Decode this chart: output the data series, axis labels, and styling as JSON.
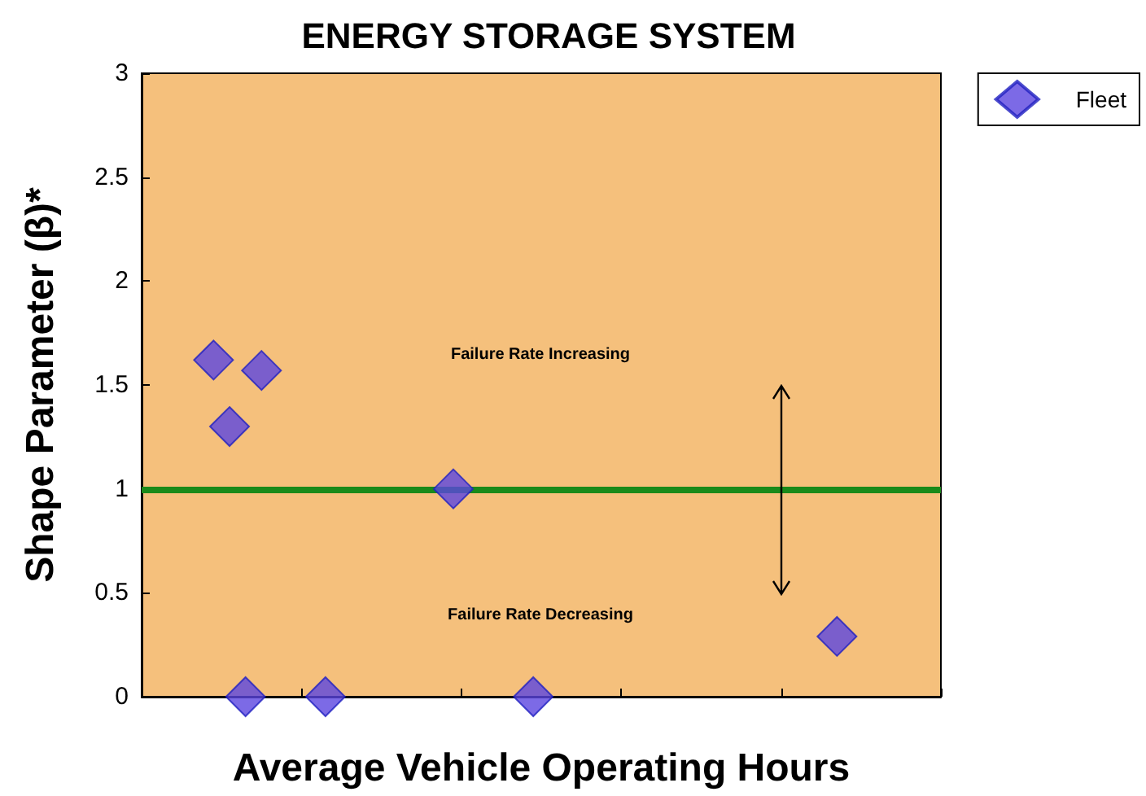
{
  "chart_data": {
    "type": "scatter",
    "title": "ENERGY STORAGE SYSTEM",
    "xlabel": "Average Vehicle Operating Hours",
    "ylabel": "Shape Parameter (β)*",
    "categories": [
      null,
      null,
      null,
      null,
      null,
      null,
      null,
      null,
      null,
      null,
      null,
      null,
      null,
      null,
      null,
      null,
      null,
      null,
      null,
      null,
      null,
      null,
      null,
      null,
      null,
      null,
      null,
      null,
      null,
      null,
      null,
      null,
      null,
      null,
      null,
      null,
      null,
      null,
      null,
      null,
      null,
      null,
      null,
      null,
      null,
      null,
      null,
      null,
      null,
      null
    ],
    "series": [
      {
        "name": "Fleet",
        "color": "#5b45e0",
        "values": [
          null,
          null,
          null,
          null,
          1.62,
          1.3,
          0,
          1.57,
          null,
          null,
          null,
          0,
          null,
          null,
          null,
          null,
          null,
          null,
          null,
          1.0,
          null,
          null,
          null,
          null,
          0,
          null,
          null,
          null,
          null,
          null,
          null,
          null,
          null,
          null,
          null,
          null,
          null,
          null,
          null,
          null,
          null,
          null,
          null,
          0.29,
          null,
          null,
          null,
          null,
          null,
          null
        ]
      }
    ],
    "ylim": [
      0,
      3
    ],
    "yticks": [
      0,
      0.5,
      1,
      1.5,
      2,
      2.5,
      3
    ],
    "tick_labels": "y",
    "ref_lines": [
      {
        "axis": "y",
        "value": 1,
        "color": "#1a8a1a"
      }
    ],
    "annotations": [
      "Failure Rate Increasing",
      "Failure Rate Decreasing"
    ],
    "marker": "diamond",
    "legend": "top right"
  }
}
